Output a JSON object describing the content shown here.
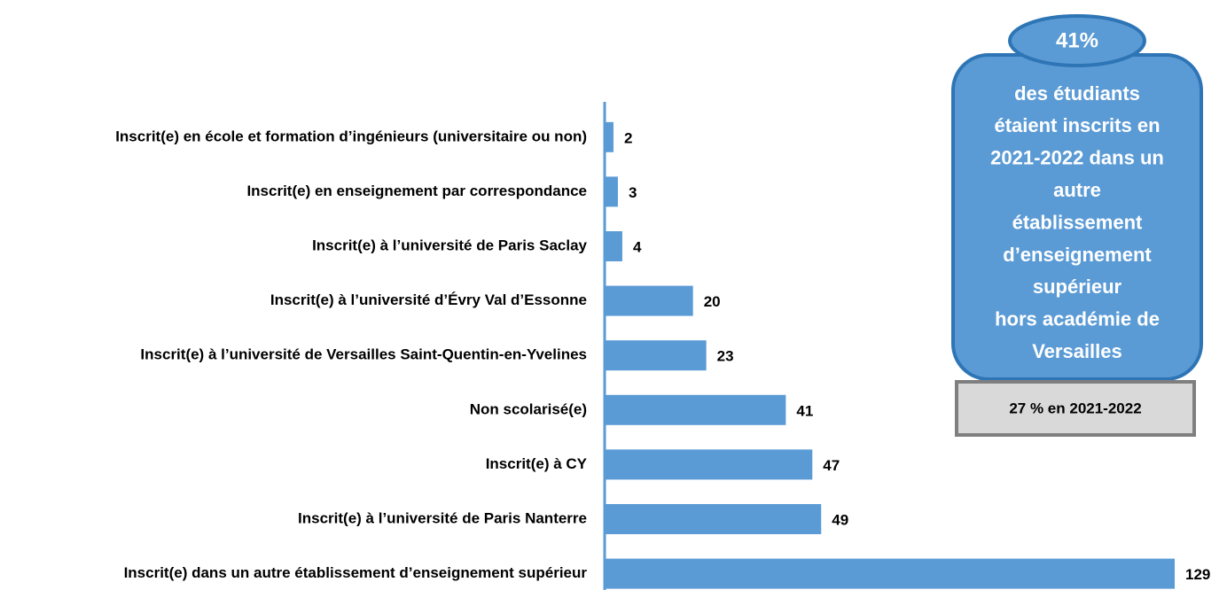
{
  "chart_data": {
    "type": "barh",
    "categories": [
      "Inscrit(e) en école et formation d’ingénieurs (universitaire ou non)",
      "Inscrit(e) en enseignement par correspondance",
      "Inscrit(e) à l’université de Paris Saclay",
      "Inscrit(e) à l’université d’Évry Val d’Essonne",
      "Inscrit(e) à l’université de Versailles Saint-Quentin-en-Yvelines",
      "Non scolarisé(e)",
      "Inscrit(e) à CY",
      "Inscrit(e) à l’université de Paris Nanterre",
      "Inscrit(e) dans un autre établissement d’enseignement supérieur"
    ],
    "values": [
      2,
      3,
      4,
      20,
      23,
      41,
      47,
      49,
      129
    ],
    "color": "#5b9bd5",
    "callout": {
      "value": "41%",
      "lines": [
        "des étudiants",
        "étaient inscrits en",
        "2021-2022 dans un",
        "autre",
        "établissement",
        "d’enseignement",
        "supérieur",
        "hors académie de",
        "Versailles"
      ]
    },
    "comparison": "27 % en 2021-2022"
  }
}
